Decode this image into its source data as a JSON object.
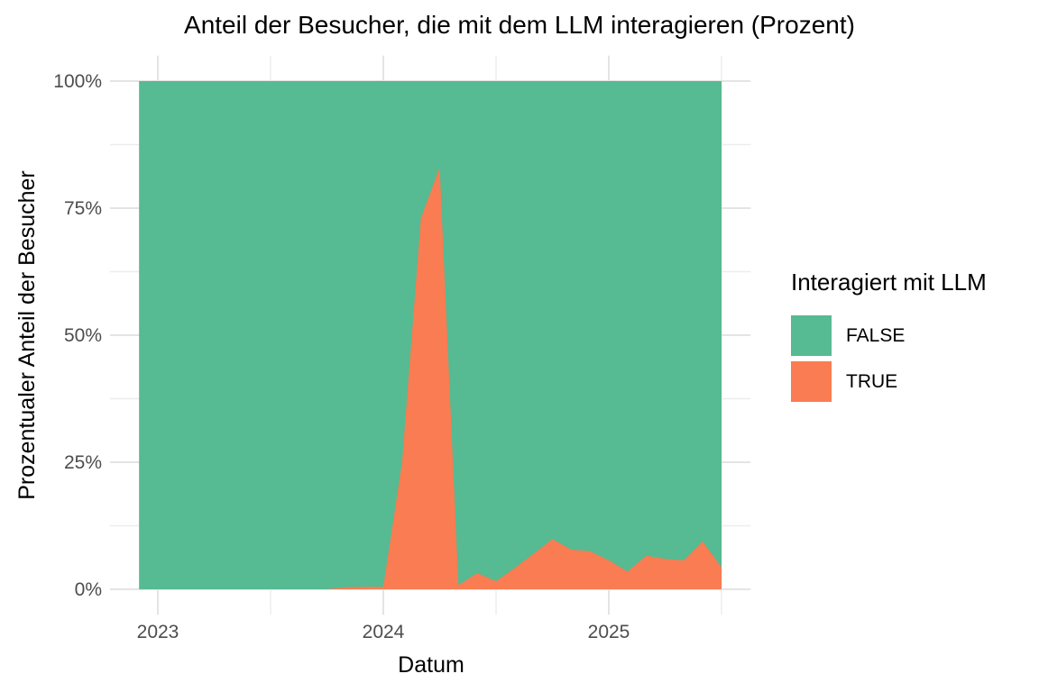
{
  "chart_data": {
    "type": "area",
    "stacked": true,
    "normalized": "percent",
    "title": "Anteil der Besucher, die mit dem LLM interagieren (Prozent)",
    "xlabel": "Datum",
    "ylabel": "Prozentualer Anteil der Besucher",
    "legend": {
      "title": "Interagiert mit LLM",
      "position": "right",
      "items": [
        {
          "label": "FALSE",
          "color": "#56BA92"
        },
        {
          "label": "TRUE",
          "color": "#F97C52"
        }
      ]
    },
    "grid": {
      "show_major": true,
      "show_minor": true,
      "major_color": "#E4E4E4",
      "minor_color": "#EDEDED",
      "background": "#FFFFFF"
    },
    "axis_text_color": "#4D4D4D",
    "months": [
      "2022-12",
      "2023-01",
      "2023-02",
      "2023-03",
      "2023-04",
      "2023-05",
      "2023-06",
      "2023-07",
      "2023-08",
      "2023-09",
      "2023-10",
      "2023-11",
      "2023-12",
      "2024-01",
      "2024-02",
      "2024-03",
      "2024-04",
      "2024-05",
      "2024-06",
      "2024-07",
      "2024-08",
      "2024-09",
      "2024-10",
      "2024-11",
      "2024-12",
      "2025-01",
      "2025-02",
      "2025-03",
      "2025-04",
      "2025-05",
      "2025-06",
      "2025-07"
    ],
    "series": [
      {
        "name": "FALSE",
        "color": "#56BA92",
        "values": [
          100,
          100,
          100,
          100,
          100,
          100,
          100,
          100,
          100,
          100,
          100,
          99.6,
          99.5,
          99.5,
          75,
          27,
          17,
          99.2,
          96.8,
          98.4,
          95.8,
          93,
          90.1,
          92.2,
          92.5,
          94.3,
          96.5,
          93.4,
          94,
          94.3,
          90.6,
          95.7
        ]
      },
      {
        "name": "TRUE",
        "color": "#F97C52",
        "values": [
          0,
          0,
          0,
          0,
          0,
          0,
          0,
          0,
          0,
          0,
          0,
          0.4,
          0.5,
          0.5,
          25,
          73,
          83,
          0.8,
          3.2,
          1.6,
          4.2,
          7,
          9.9,
          7.8,
          7.5,
          5.7,
          3.5,
          6.6,
          6,
          5.7,
          9.4,
          4.3
        ]
      }
    ],
    "x_axis": {
      "range": [
        2022.9167,
        2025.5
      ],
      "ticks": [
        {
          "t": 2023,
          "label": "2023"
        },
        {
          "t": 2024,
          "label": "2024"
        },
        {
          "t": 2025,
          "label": "2025"
        }
      ],
      "minor_ticks": [
        2023.5,
        2024.5,
        2025.5
      ]
    },
    "y_axis": {
      "range": [
        0,
        100
      ],
      "unit": "percent",
      "ticks": [
        {
          "v": 0,
          "label": "0%"
        },
        {
          "v": 25,
          "label": "25%"
        },
        {
          "v": 50,
          "label": "50%"
        },
        {
          "v": 75,
          "label": "75%"
        },
        {
          "v": 100,
          "label": "100%"
        }
      ],
      "minor_ticks": [
        12.5,
        37.5,
        62.5,
        87.5
      ]
    }
  }
}
